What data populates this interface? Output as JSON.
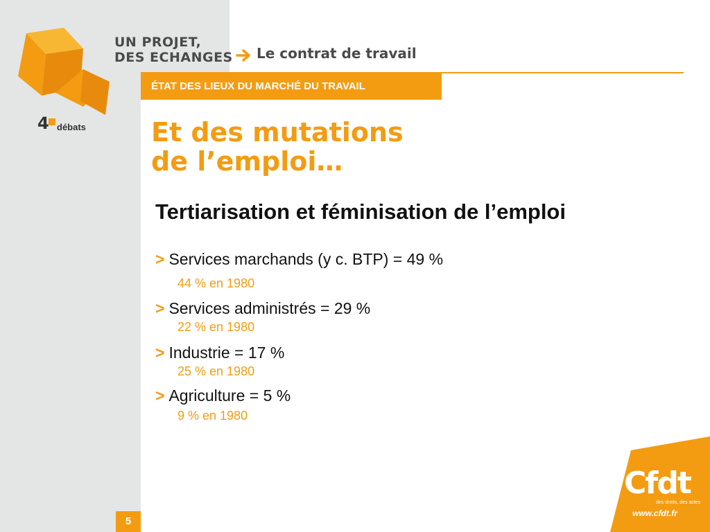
{
  "header": {
    "brand_line1": "UN PROJET,",
    "brand_line2": "DES ECHANGES",
    "contract_title": "Le contrat de travail",
    "logo_text": "débats",
    "logo_number": "4"
  },
  "section_banner": "ÉTAT DES LIEUX DU MARCHÉ DU TRAVAIL",
  "title": {
    "line1": "Et des mutations",
    "line2": "de l’emploi…"
  },
  "subtitle": "Tertiarisation et féminisation de l’emploi",
  "bullet_marker": ">",
  "bullets": [
    {
      "text": "Services marchands (y c. BTP) = 49 %",
      "sub": "44 % en 1980"
    },
    {
      "text": "Services administrés = 29 %",
      "sub": "22 % en 1980"
    },
    {
      "text": "Industrie = 17 %",
      "sub": "25 % en 1980"
    },
    {
      "text": "Agriculture = 5 %",
      "sub": "9 % en 1980"
    }
  ],
  "footer": {
    "page_number": "5",
    "cfdt_logo": "Cfdt",
    "cfdt_tagline": "des droits, des actes",
    "cfdt_url": "www.cfdt.fr"
  },
  "colors": {
    "accent": "#f39c12",
    "grey_band": "#e4e5e5",
    "text_dark": "#111111",
    "brand_grey": "#4a4a4a"
  }
}
